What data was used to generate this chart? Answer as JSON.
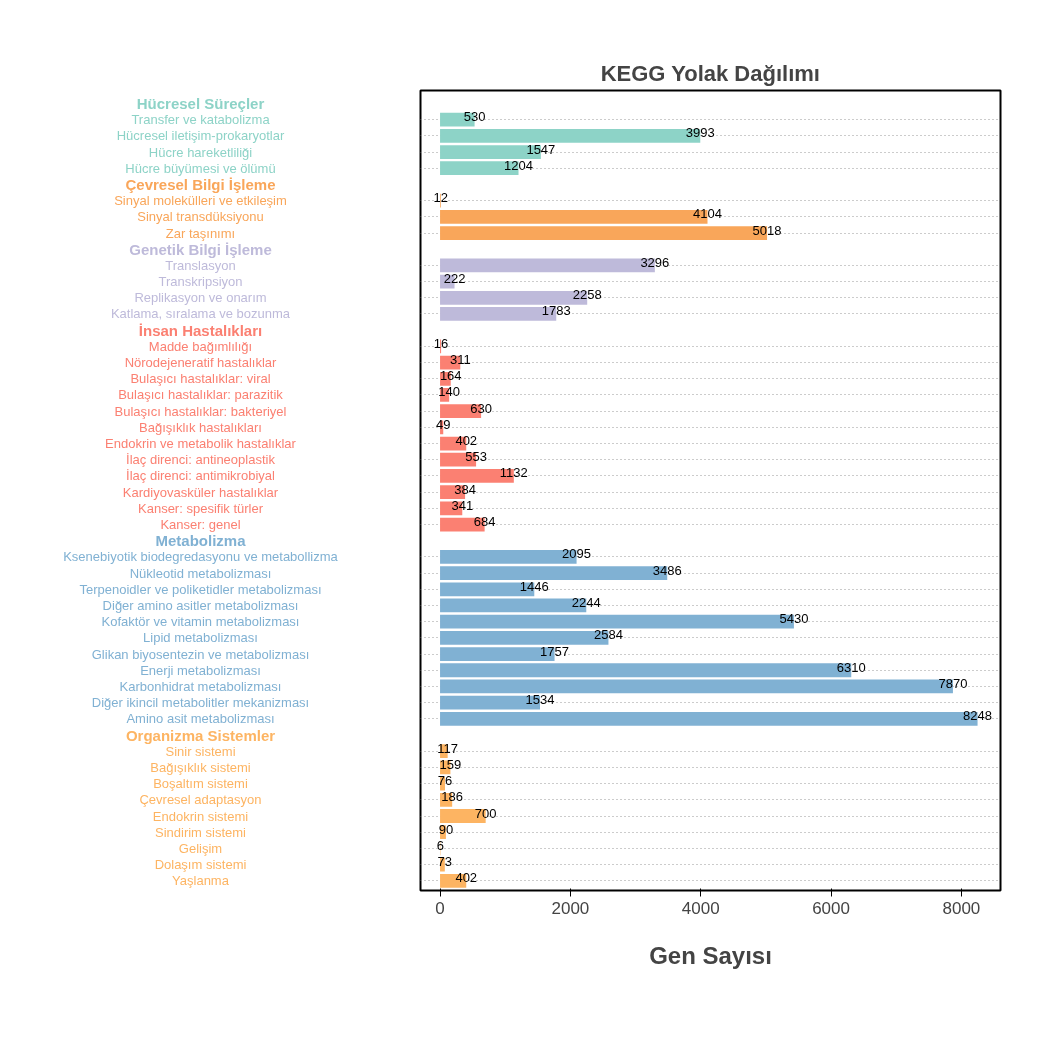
{
  "chart_data": {
    "type": "bar",
    "orientation": "horizontal",
    "title": "KEGG Yolak Dağılımı",
    "xlabel": "Gen Sayısı",
    "categories": [
      "Transfer ve katabolizma",
      "Hücresel iletişim-prokaryotlar",
      "Hücre hareketliliği",
      "Hücre büyümesi ve ölümü",
      "Sinyal molekülleri ve etkileşim",
      "Sinyal transdüksiyonu",
      "Zar taşınımı",
      "Translasyon",
      "Transkripsiyon",
      "Replikasyon ve onarım",
      "Katlama, sıralama ve bozunma",
      "Madde bağımlılığı",
      "Nörodejeneratif hastalıklar",
      "Bulaşıcı hastalıklar: viral",
      "Bulaşıcı hastalıklar: parazitik",
      "Bulaşıcı hastalıklar: bakteriyel",
      "Bağışıklık hastalıkları",
      "Endokrin ve metabolik hastalıklar",
      "İlaç direnci: antineoplastik",
      "İlaç direnci: antimikrobiyal",
      "Kardiyovasküler hastalıklar",
      "Kanser: spesifik türler",
      "Kanser: genel",
      "Ksenebiyotik biodegredasyonu ve metabollizma",
      "Nükleotid metabolizması",
      "Terpenoidler ve poliketidler metabolizması",
      "Diğer amino asitler metabolizması",
      "Kofaktör ve vitamin metabolizması",
      "Lipid metabolizması",
      "Glikan biyosentezin ve metabolizması",
      "Enerji metabolizması",
      "Karbonhidrat metabolizması",
      "Diğer ikincil metabolitler mekanizması",
      "Amino asit metabolizması",
      "Sinir sistemi",
      "Bağışıklık sistemi",
      "Boşaltım sistemi",
      "Çevresel adaptasyon",
      "Endokrin sistemi",
      "Sindirim sistemi",
      "Gelişim",
      "Dolaşım sistemi",
      "Yaşlanma"
    ],
    "series": [
      {
        "name": "Hücresel Süreçler",
        "color": "#8dd3c7",
        "values": [
          530,
          3993,
          1547,
          1204,
          null,
          null,
          null,
          null,
          null,
          null,
          null,
          null,
          null,
          null,
          null,
          null,
          null,
          null,
          null,
          null,
          null,
          null,
          null,
          null,
          null,
          null,
          null,
          null,
          null,
          null,
          null,
          null,
          null,
          null,
          null,
          null,
          null,
          null,
          null,
          null,
          null,
          null,
          null
        ]
      },
      {
        "name": "Çevresel Bilgi İşleme",
        "color": "#f9a65a",
        "values": [
          null,
          null,
          null,
          null,
          12,
          4104,
          5018,
          null,
          null,
          null,
          null,
          null,
          null,
          null,
          null,
          null,
          null,
          null,
          null,
          null,
          null,
          null,
          null,
          null,
          null,
          null,
          null,
          null,
          null,
          null,
          null,
          null,
          null,
          null,
          null,
          null,
          null,
          null,
          null,
          null,
          null,
          null,
          null
        ]
      },
      {
        "name": "Genetik Bilgi İşleme",
        "color": "#bebada",
        "values": [
          null,
          null,
          null,
          null,
          null,
          null,
          null,
          3296,
          222,
          2258,
          1783,
          null,
          null,
          null,
          null,
          null,
          null,
          null,
          null,
          null,
          null,
          null,
          null,
          null,
          null,
          null,
          null,
          null,
          null,
          null,
          null,
          null,
          null,
          null,
          null,
          null,
          null,
          null,
          null,
          null,
          null,
          null,
          null
        ]
      },
      {
        "name": "İnsan Hastalıkları",
        "color": "#fb8072",
        "values": [
          null,
          null,
          null,
          null,
          null,
          null,
          null,
          null,
          null,
          null,
          null,
          16,
          311,
          164,
          140,
          630,
          49,
          402,
          553,
          1132,
          384,
          341,
          684,
          null,
          null,
          null,
          null,
          null,
          null,
          null,
          null,
          null,
          null,
          null,
          null,
          null,
          null,
          null,
          null,
          null,
          null,
          null,
          null
        ]
      },
      {
        "name": "Metabolizma",
        "color": "#80b1d3",
        "values": [
          null,
          null,
          null,
          null,
          null,
          null,
          null,
          null,
          null,
          null,
          null,
          null,
          null,
          null,
          null,
          null,
          null,
          null,
          null,
          null,
          null,
          null,
          null,
          2095,
          3486,
          1446,
          2244,
          5430,
          2584,
          1757,
          6310,
          7870,
          1534,
          8248,
          null,
          null,
          null,
          null,
          null,
          null,
          null,
          null,
          null
        ]
      },
      {
        "name": "Organizma Sistemler",
        "color": "#fdb462",
        "values": [
          null,
          null,
          null,
          null,
          null,
          null,
          null,
          null,
          null,
          null,
          null,
          null,
          null,
          null,
          null,
          null,
          null,
          null,
          null,
          null,
          null,
          null,
          null,
          null,
          null,
          null,
          null,
          null,
          null,
          null,
          null,
          null,
          null,
          null,
          117,
          159,
          76,
          186,
          700,
          90,
          6,
          73,
          402
        ]
      }
    ],
    "xlim": [
      -300,
      8600
    ],
    "xticks": [
      0,
      2000,
      4000,
      6000,
      8000
    ],
    "grid": "y",
    "data_labels": true
  }
}
